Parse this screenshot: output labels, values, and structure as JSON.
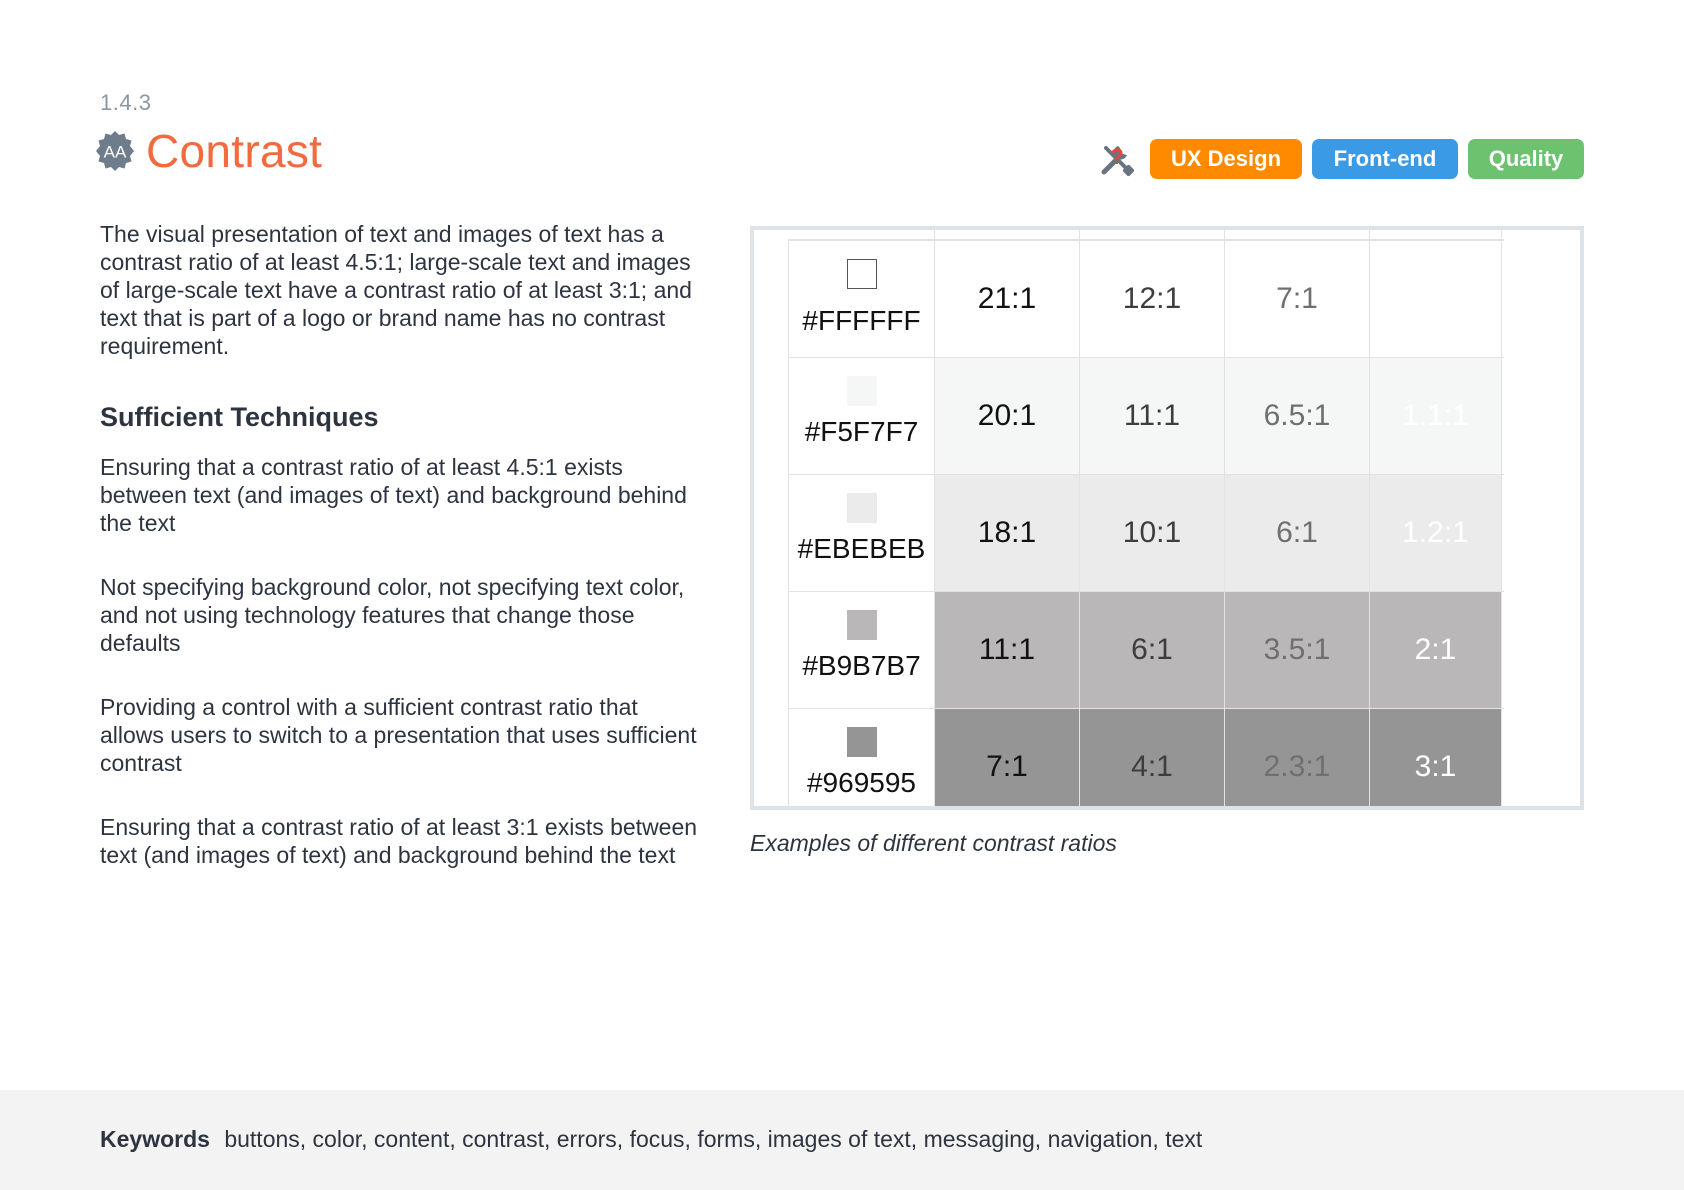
{
  "header": {
    "section_number": "1.4.3",
    "level_badge": "AA",
    "title": "Contrast"
  },
  "tags": {
    "icon": "tools-icon",
    "items": [
      {
        "label": "UX Design",
        "color": "#ff8a00"
      },
      {
        "label": "Front-end",
        "color": "#3a9ae6"
      },
      {
        "label": "Quality",
        "color": "#6cc26f"
      }
    ]
  },
  "intro": "The visual presentation of text and images of text has a contrast ratio of at least 4.5:1; large-scale text and images of large-scale text have a contrast ratio of at least 3:1; and text that is part of a logo or brand name has no contrast requirement.",
  "techniques": {
    "heading": "Sufficient Techniques",
    "items": [
      "Ensuring that a contrast ratio of at least 4.5:1 exists between text (and images of text) and background behind the text",
      "Not specifying background color, not specifying text color, and not using technology features that change those defaults",
      "Providing a control with a sufficient contrast ratio that allows users to switch to a presentation that uses sufficient contrast",
      "Ensuring that a contrast ratio of at least 3:1 exists between text (and images of text) and background behind the text"
    ]
  },
  "contrast_table": {
    "rows": [
      {
        "hex": "#FFFFFF",
        "bg": "#ffffff",
        "cells": [
          "21:1",
          "12:1",
          "7:1",
          ""
        ]
      },
      {
        "hex": "#F5F7F7",
        "bg": "#f5f7f7",
        "cells": [
          "20:1",
          "11:1",
          "6.5:1",
          "1.1:1"
        ]
      },
      {
        "hex": "#EBEBEB",
        "bg": "#ebebeb",
        "cells": [
          "18:1",
          "10:1",
          "6:1",
          "1.2:1"
        ]
      },
      {
        "hex": "#B9B7B7",
        "bg": "#b9b7b7",
        "cells": [
          "11:1",
          "6:1",
          "3.5:1",
          "2:1"
        ]
      },
      {
        "hex": "#969595",
        "bg": "#969595",
        "cells": [
          "7:1",
          "4:1",
          "2.3:1",
          "3:1"
        ]
      }
    ],
    "text_colors": [
      "#111111",
      "#3d3d3d",
      "#6f6f6f",
      "#ffffff"
    ]
  },
  "caption": "Examples of different contrast ratios",
  "footer": {
    "keywords_label": "Keywords",
    "keywords": "buttons, color, content, contrast, errors, focus, forms, images of text, messaging, navigation, text"
  }
}
